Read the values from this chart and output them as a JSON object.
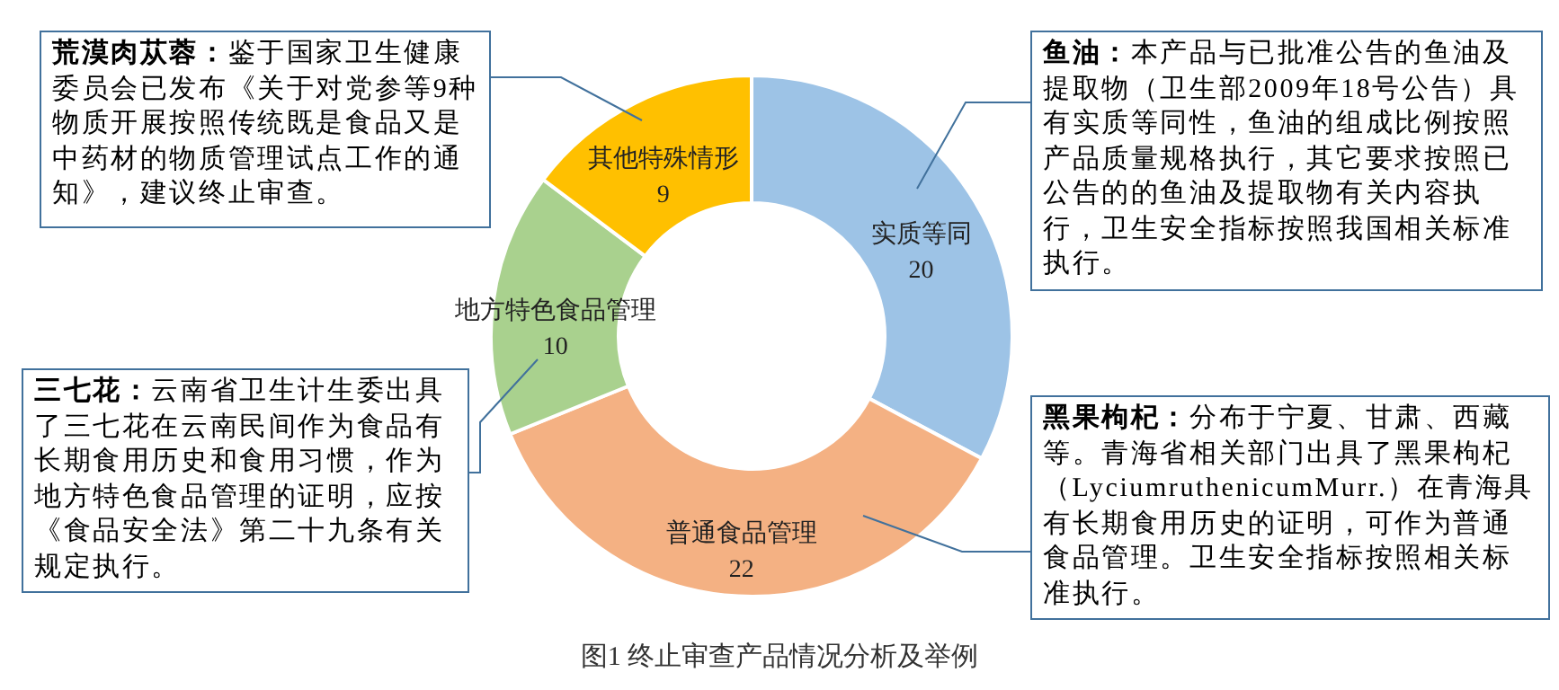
{
  "chart_data": {
    "type": "donut",
    "title": "图1 终止审查产品情况分析及举例",
    "categories": [
      "实质等同",
      "普通食品管理",
      "地方特色食品管理",
      "其他特殊情形"
    ],
    "values": [
      20,
      22,
      10,
      9
    ],
    "colors": [
      "#9dc3e6",
      "#f4b183",
      "#a9d18e",
      "#ffc000"
    ],
    "data_labels": true,
    "annotations": [
      "荒漠肉苁蓉：鉴于国家卫生健康委员会已发布《关于对党参等9种物质开展按照传统既是食品又是中药材的物质管理试点工作的通知》，建议终止审查。",
      "鱼油：本产品与已批准公告的鱼油及提取物（卫生部2009年18号公告）具有实质等同性，鱼油的组成比例按照产品质量规格执行，其它要求按照已公告的的鱼油及提取物有关内容执行，卫生安全指标按照我国相关标准执行。",
      "三七花：云南省卫生计生委出具了三七花在云南民间作为食品有长期食用历史和食用习惯，作为地方特色食品管理的证明，应按《食品安全法》第二十九条有关规定执行。",
      "黑果枸杞：分布于宁夏、甘肃、西藏等。青海省相关部门出具了黑果枸杞（LyciumruthenicumMurr.）在青海具有长期食用历史的证明，可作为普通食品管理。卫生安全指标按照相关标准执行。"
    ]
  }
}
